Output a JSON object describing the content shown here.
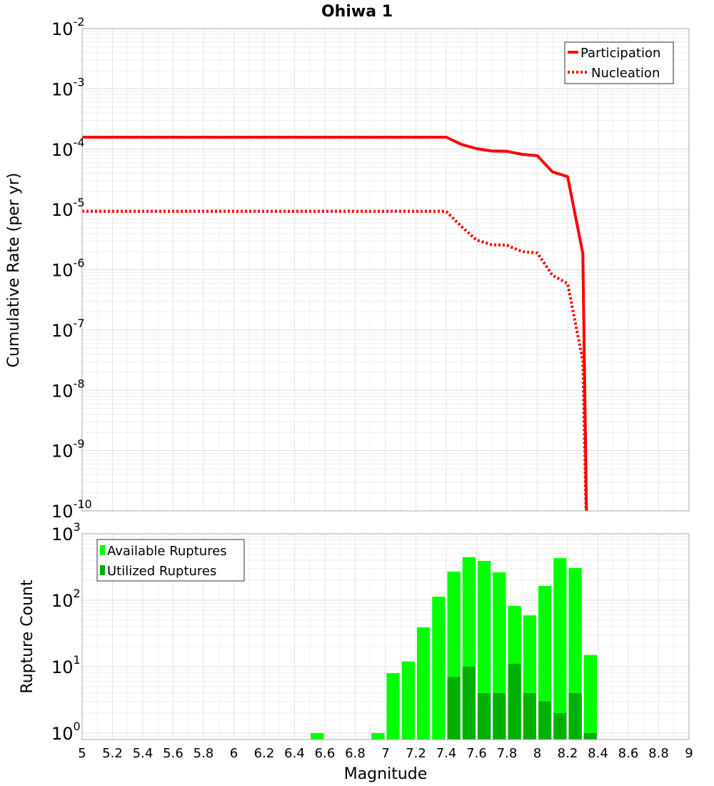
{
  "chart_data": [
    {
      "type": "line",
      "title": "Ohiwa 1",
      "xlabel": "",
      "ylabel": "Cumulative Rate (per yr)",
      "xlim": [
        5,
        9
      ],
      "ylim": [
        1e-10,
        0.01
      ],
      "yscale": "log",
      "y_tick_exponents": [
        -2,
        -3,
        -4,
        -5,
        -6,
        -7,
        -8,
        -9,
        -10
      ],
      "grid": true,
      "legend_position": "top-right",
      "series": [
        {
          "name": "Participation",
          "style": "solid",
          "color": "#ff0000",
          "x": [
            5.0,
            7.4,
            7.5,
            7.6,
            7.7,
            7.8,
            7.9,
            8.0,
            8.1,
            8.2,
            8.3,
            8.33
          ],
          "y": [
            0.000158,
            0.000158,
            0.00012,
            0.000102,
            9.3e-05,
            9.2e-05,
            8.2e-05,
            7.8e-05,
            4.2e-05,
            3.5e-05,
            1.86e-06,
            1e-11
          ]
        },
        {
          "name": "Nucleation",
          "style": "dotted",
          "color": "#ff0000",
          "x": [
            5.0,
            7.4,
            7.5,
            7.6,
            7.7,
            7.8,
            7.9,
            8.0,
            8.1,
            8.2,
            8.3,
            8.33
          ],
          "y": [
            9.3e-06,
            9.3e-06,
            5.2e-06,
            3.1e-06,
            2.6e-06,
            2.55e-06,
            2e-06,
            1.9e-06,
            8.1e-07,
            5.9e-07,
            3.1e-08,
            1e-11
          ]
        }
      ]
    },
    {
      "type": "bar",
      "xlabel": "Magnitude",
      "ylabel": "Rupture Count",
      "xlim": [
        5,
        9
      ],
      "ylim": [
        0.8,
        1000
      ],
      "yscale": "log",
      "y_tick_exponents": [
        3,
        2,
        1,
        0
      ],
      "x_ticks": [
        "5",
        "5.2",
        "5.4",
        "5.6",
        "5.8",
        "6",
        "6.2",
        "6.4",
        "6.6",
        "6.8",
        "7",
        "7.2",
        "7.4",
        "7.6",
        "7.8",
        "8",
        "8.2",
        "8.4",
        "8.6",
        "8.8",
        "9"
      ],
      "bin_width": 0.1,
      "legend_position": "top-left",
      "series": [
        {
          "name": "Available Ruptures",
          "color": "#00ff00",
          "x": [
            6.5,
            6.9,
            7.0,
            7.1,
            7.2,
            7.3,
            7.4,
            7.5,
            7.6,
            7.7,
            7.8,
            7.9,
            8.0,
            8.1,
            8.2,
            8.3
          ],
          "values": [
            1,
            1,
            8,
            12,
            39,
            113,
            270,
            445,
            390,
            263,
            82,
            59,
            164,
            430,
            305,
            15
          ]
        },
        {
          "name": "Utilized Ruptures",
          "color": "#00b000",
          "x": [
            7.4,
            7.5,
            7.6,
            7.7,
            7.8,
            7.9,
            8.0,
            8.1,
            8.2,
            8.3
          ],
          "values": [
            7,
            10,
            4,
            4,
            11,
            4,
            3,
            2,
            4,
            1
          ]
        }
      ]
    }
  ]
}
